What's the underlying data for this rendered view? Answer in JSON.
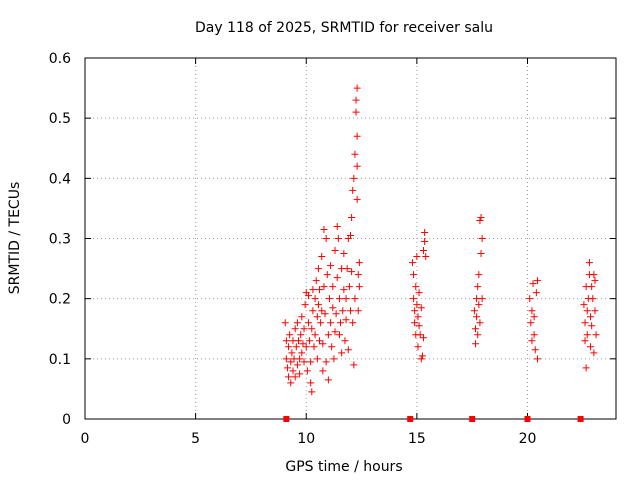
{
  "chart_data": {
    "type": "scatter",
    "title": "Day 118 of 2025, SRMTID for receiver salu",
    "xlabel": "GPS time / hours",
    "ylabel": "SRMTID / TECUs",
    "xlim": [
      0,
      24
    ],
    "ylim": [
      0,
      0.6
    ],
    "xticks": [
      "0",
      "5",
      "10",
      "15",
      "20"
    ],
    "xtick_values": [
      0,
      5,
      10,
      15,
      20
    ],
    "yticks": [
      "0",
      "0.1",
      "0.2",
      "0.3",
      "0.4",
      "0.5",
      "0.6"
    ],
    "ytick_values": [
      0,
      0.1,
      0.2,
      0.3,
      0.4,
      0.5,
      0.6
    ],
    "grid": true,
    "marker": "plus",
    "color": "#ff0000",
    "zero_markers_x": [
      9.1,
      14.7,
      17.5,
      20.0,
      22.4
    ],
    "series": [
      {
        "name": "SRMTID",
        "points": [
          [
            9.05,
            0.16
          ],
          [
            9.1,
            0.13
          ],
          [
            9.1,
            0.1
          ],
          [
            9.15,
            0.085
          ],
          [
            9.2,
            0.12
          ],
          [
            9.2,
            0.07
          ],
          [
            9.25,
            0.14
          ],
          [
            9.3,
            0.095
          ],
          [
            9.3,
            0.06
          ],
          [
            9.35,
            0.11
          ],
          [
            9.4,
            0.08
          ],
          [
            9.4,
            0.13
          ],
          [
            9.45,
            0.1
          ],
          [
            9.5,
            0.07
          ],
          [
            9.5,
            0.15
          ],
          [
            9.55,
            0.12
          ],
          [
            9.6,
            0.09
          ],
          [
            9.6,
            0.16
          ],
          [
            9.65,
            0.13
          ],
          [
            9.7,
            0.1
          ],
          [
            9.7,
            0.075
          ],
          [
            9.75,
            0.14
          ],
          [
            9.8,
            0.11
          ],
          [
            9.8,
            0.17
          ],
          [
            9.85,
            0.125
          ],
          [
            9.9,
            0.095
          ],
          [
            9.9,
            0.15
          ],
          [
            9.95,
            0.19
          ],
          [
            10.0,
            0.21
          ],
          [
            10.0,
            0.12
          ],
          [
            10.05,
            0.08
          ],
          [
            10.1,
            0.16
          ],
          [
            10.1,
            0.205
          ],
          [
            10.15,
            0.13
          ],
          [
            10.2,
            0.06
          ],
          [
            10.2,
            0.095
          ],
          [
            10.25,
            0.15
          ],
          [
            10.25,
            0.045
          ],
          [
            10.3,
            0.18
          ],
          [
            10.3,
            0.215
          ],
          [
            10.35,
            0.12
          ],
          [
            10.4,
            0.2
          ],
          [
            10.4,
            0.14
          ],
          [
            10.45,
            0.23
          ],
          [
            10.5,
            0.17
          ],
          [
            10.5,
            0.1
          ],
          [
            10.55,
            0.25
          ],
          [
            10.55,
            0.19
          ],
          [
            10.6,
            0.13
          ],
          [
            10.6,
            0.215
          ],
          [
            10.65,
            0.16
          ],
          [
            10.7,
            0.27
          ],
          [
            10.7,
            0.18
          ],
          [
            10.75,
            0.08
          ],
          [
            10.75,
            0.125
          ],
          [
            10.8,
            0.315
          ],
          [
            10.8,
            0.22
          ],
          [
            10.85,
            0.175
          ],
          [
            10.9,
            0.095
          ],
          [
            10.9,
            0.3
          ],
          [
            10.95,
            0.24
          ],
          [
            11.0,
            0.14
          ],
          [
            11.0,
            0.065
          ],
          [
            11.05,
            0.2
          ],
          [
            11.1,
            0.255
          ],
          [
            11.1,
            0.16
          ],
          [
            11.15,
            0.12
          ],
          [
            11.2,
            0.185
          ],
          [
            11.2,
            0.22
          ],
          [
            11.25,
            0.1
          ],
          [
            11.3,
            0.145
          ],
          [
            11.3,
            0.28
          ],
          [
            11.35,
            0.175
          ],
          [
            11.4,
            0.32
          ],
          [
            11.4,
            0.235
          ],
          [
            11.45,
            0.3
          ],
          [
            11.5,
            0.14
          ],
          [
            11.5,
            0.2
          ],
          [
            11.55,
            0.16
          ],
          [
            11.6,
            0.25
          ],
          [
            11.6,
            0.11
          ],
          [
            11.65,
            0.18
          ],
          [
            11.7,
            0.275
          ],
          [
            11.7,
            0.215
          ],
          [
            11.75,
            0.13
          ],
          [
            11.8,
            0.2
          ],
          [
            11.8,
            0.165
          ],
          [
            11.85,
            0.25
          ],
          [
            11.9,
            0.3
          ],
          [
            11.9,
            0.115
          ],
          [
            11.95,
            0.22
          ],
          [
            12.0,
            0.305
          ],
          [
            12.0,
            0.18
          ],
          [
            12.05,
            0.335
          ],
          [
            12.05,
            0.245
          ],
          [
            12.1,
            0.38
          ],
          [
            12.1,
            0.16
          ],
          [
            12.15,
            0.4
          ],
          [
            12.15,
            0.09
          ],
          [
            12.2,
            0.44
          ],
          [
            12.2,
            0.2
          ],
          [
            12.25,
            0.51
          ],
          [
            12.25,
            0.53
          ],
          [
            12.3,
            0.55
          ],
          [
            12.3,
            0.47
          ],
          [
            12.3,
            0.42
          ],
          [
            12.3,
            0.365
          ],
          [
            12.35,
            0.24
          ],
          [
            12.35,
            0.18
          ],
          [
            12.4,
            0.22
          ],
          [
            12.4,
            0.26
          ],
          [
            14.8,
            0.26
          ],
          [
            14.85,
            0.24
          ],
          [
            14.85,
            0.2
          ],
          [
            14.9,
            0.18
          ],
          [
            14.9,
            0.16
          ],
          [
            14.95,
            0.14
          ],
          [
            14.95,
            0.22
          ],
          [
            15.0,
            0.19
          ],
          [
            15.0,
            0.27
          ],
          [
            15.05,
            0.17
          ],
          [
            15.05,
            0.12
          ],
          [
            15.1,
            0.155
          ],
          [
            15.1,
            0.21
          ],
          [
            15.15,
            0.14
          ],
          [
            15.2,
            0.1
          ],
          [
            15.2,
            0.185
          ],
          [
            15.25,
            0.105
          ],
          [
            15.3,
            0.28
          ],
          [
            15.3,
            0.135
          ],
          [
            15.35,
            0.31
          ],
          [
            15.35,
            0.295
          ],
          [
            15.4,
            0.27
          ],
          [
            17.6,
            0.18
          ],
          [
            17.65,
            0.15
          ],
          [
            17.65,
            0.125
          ],
          [
            17.7,
            0.2
          ],
          [
            17.7,
            0.17
          ],
          [
            17.75,
            0.22
          ],
          [
            17.75,
            0.14
          ],
          [
            17.8,
            0.19
          ],
          [
            17.8,
            0.24
          ],
          [
            17.85,
            0.16
          ],
          [
            17.85,
            0.33
          ],
          [
            17.9,
            0.335
          ],
          [
            17.9,
            0.275
          ],
          [
            17.95,
            0.3
          ],
          [
            17.95,
            0.2
          ],
          [
            20.1,
            0.2
          ],
          [
            20.15,
            0.16
          ],
          [
            20.2,
            0.13
          ],
          [
            20.2,
            0.18
          ],
          [
            20.25,
            0.225
          ],
          [
            20.3,
            0.14
          ],
          [
            20.3,
            0.17
          ],
          [
            20.35,
            0.115
          ],
          [
            20.4,
            0.21
          ],
          [
            20.45,
            0.1
          ],
          [
            20.45,
            0.23
          ],
          [
            22.55,
            0.19
          ],
          [
            22.6,
            0.16
          ],
          [
            22.6,
            0.13
          ],
          [
            22.65,
            0.085
          ],
          [
            22.65,
            0.22
          ],
          [
            22.7,
            0.18
          ],
          [
            22.7,
            0.14
          ],
          [
            22.75,
            0.2
          ],
          [
            22.8,
            0.26
          ],
          [
            22.8,
            0.24
          ],
          [
            22.85,
            0.17
          ],
          [
            22.85,
            0.12
          ],
          [
            22.9,
            0.22
          ],
          [
            22.9,
            0.155
          ],
          [
            22.95,
            0.2
          ],
          [
            23.0,
            0.24
          ],
          [
            23.0,
            0.11
          ],
          [
            23.05,
            0.23
          ],
          [
            23.05,
            0.18
          ],
          [
            23.1,
            0.14
          ]
        ]
      }
    ]
  }
}
